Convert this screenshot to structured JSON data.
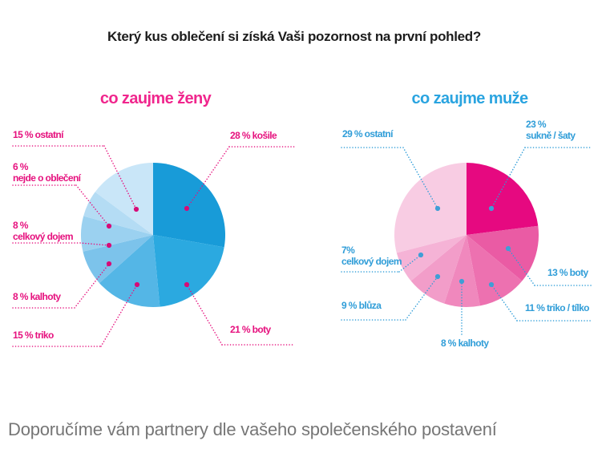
{
  "page": {
    "main_title": "Který kus oblečení si získá Vaši pozornost na první pohled?",
    "footer_caption": "Doporučíme vám partnery dle vašeho společenského postavení",
    "background_color": "#ffffff",
    "footer_text_color": "#767676",
    "title_text_color": "#1c1c1c"
  },
  "chart_data": [
    {
      "type": "pie",
      "title": "co zaujme ženy",
      "title_color": "#f0268d",
      "label_color": "#e6117e",
      "dot_color": "#d60b77",
      "direction": "clockwise",
      "start_angle_deg": 0,
      "legend_position": "callout-labels",
      "slices": [
        {
          "label": "košile",
          "value": 28,
          "display_lines": [
            "28 % košile"
          ],
          "color": "#189bd8"
        },
        {
          "label": "boty",
          "value": 21,
          "display_lines": [
            "21 % boty"
          ],
          "color": "#2ba9e0"
        },
        {
          "label": "triko",
          "value": 15,
          "display_lines": [
            "15 % triko"
          ],
          "color": "#54b6e6"
        },
        {
          "label": "kalhoty",
          "value": 8,
          "display_lines": [
            "8 % kalhoty"
          ],
          "color": "#7cc3eb"
        },
        {
          "label": "celkový dojem",
          "value": 8,
          "display_lines": [
            "8 %",
            "celkový dojem"
          ],
          "color": "#9bd1f0"
        },
        {
          "label": "nejde o oblečení",
          "value": 6,
          "display_lines": [
            "6 %",
            "nejde o oblečení"
          ],
          "color": "#b4dcf4"
        },
        {
          "label": "ostatní",
          "value": 15,
          "display_lines": [
            "15 % ostatní"
          ],
          "color": "#c9e6f8"
        }
      ]
    },
    {
      "type": "pie",
      "title": "co zaujme muže",
      "title_color": "#2aa4e0",
      "label_color": "#2f9dd8",
      "dot_color": "#3f9ed6",
      "direction": "clockwise",
      "start_angle_deg": 0,
      "legend_position": "callout-labels",
      "slices": [
        {
          "label": "sukně / šaty",
          "value": 23,
          "display_lines": [
            "23 %",
            "sukně / šaty"
          ],
          "color": "#e60980"
        },
        {
          "label": "boty",
          "value": 13,
          "display_lines": [
            "13 % boty"
          ],
          "color": "#ea5ba4"
        },
        {
          "label": "triko / tílko",
          "value": 11,
          "display_lines": [
            "11 % triko / tílko"
          ],
          "color": "#ed71b0"
        },
        {
          "label": "kalhoty",
          "value": 8,
          "display_lines": [
            "8 % kalhoty"
          ],
          "color": "#f088bd"
        },
        {
          "label": "blůza",
          "value": 9,
          "display_lines": [
            "9 % blůza"
          ],
          "color": "#f29dc9"
        },
        {
          "label": "celkový dojem",
          "value": 7,
          "display_lines": [
            "7%",
            "celkový dojem"
          ],
          "color": "#f5b3d6"
        },
        {
          "label": "ostatní",
          "value": 29,
          "display_lines": [
            "29 % ostatní"
          ],
          "color": "#f8cce3"
        }
      ]
    }
  ]
}
